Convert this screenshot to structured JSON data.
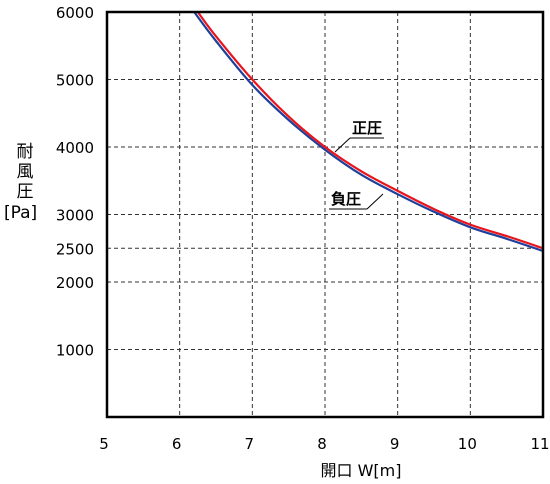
{
  "chart_data": {
    "type": "line",
    "xlabel": "開口 W[m]",
    "ylabel_text": "耐風圧",
    "ylabel_unit": "[Pa]",
    "xlim": [
      5,
      11
    ],
    "ylim": [
      0,
      6000
    ],
    "x_ticks": [
      5,
      6,
      7,
      8,
      9,
      10,
      11
    ],
    "y_ticks": [
      1000,
      2000,
      2500,
      3000,
      4000,
      5000,
      6000
    ],
    "grid": true,
    "series": [
      {
        "name": "正圧",
        "color": "#e8141c",
        "x": [
          6.25,
          6.5,
          7.0,
          7.5,
          8.0,
          8.5,
          9.0,
          9.5,
          10.0,
          10.5,
          11.0
        ],
        "y": [
          6000,
          5640,
          5000,
          4450,
          4000,
          3640,
          3350,
          3080,
          2850,
          2680,
          2500
        ]
      },
      {
        "name": "負圧",
        "color": "#1f3f9b",
        "x": [
          6.2,
          6.5,
          7.0,
          7.5,
          8.0,
          8.5,
          9.0,
          9.5,
          10.0,
          10.5,
          11.0
        ],
        "y": [
          6000,
          5570,
          4920,
          4400,
          3960,
          3590,
          3300,
          3040,
          2810,
          2640,
          2460
        ]
      }
    ]
  }
}
